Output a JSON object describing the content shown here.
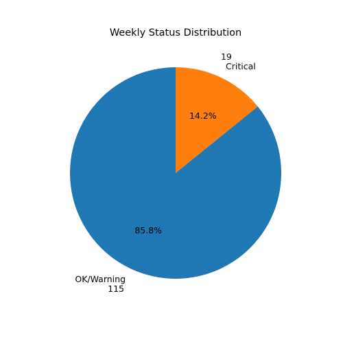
{
  "chart_data": {
    "type": "pie",
    "title": "Weekly Status Distribution",
    "categories": [
      "OK/Warning",
      "Critical"
    ],
    "values": [
      115,
      19
    ],
    "percent_labels": [
      "85.8%",
      "14.2%"
    ],
    "value_labels": [
      "115",
      "19"
    ],
    "colors": [
      "#1f77b4",
      "#ff7f0e"
    ],
    "start_angle_deg": 90,
    "direction": "counterclockwise",
    "legend": "none"
  }
}
